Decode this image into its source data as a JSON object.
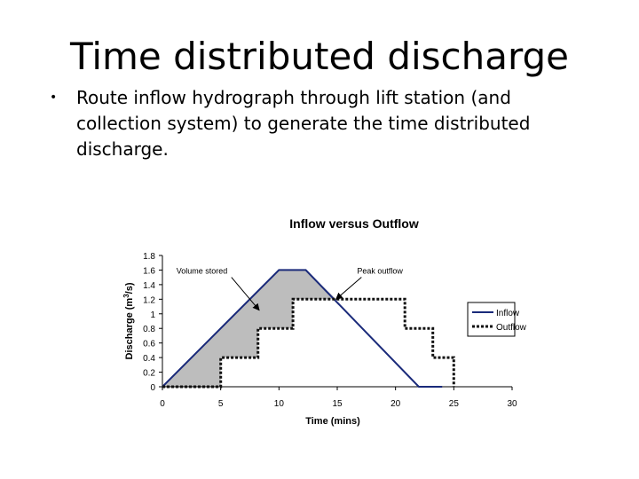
{
  "slide": {
    "title": "Time distributed discharge",
    "bullets": [
      "Route inflow hydrograph through lift station (and collection system) to generate the time distributed discharge."
    ]
  },
  "chart_data": {
    "type": "line",
    "title": "Inflow versus Outflow",
    "xlabel": "Time (mins)",
    "ylabel_parts": [
      "Discharge (m",
      "3",
      "/s)"
    ],
    "xlim": [
      0,
      30
    ],
    "ylim": [
      0,
      1.8
    ],
    "x_ticks": [
      0,
      5,
      10,
      15,
      20,
      25,
      30
    ],
    "y_ticks": [
      "0",
      "0.2",
      "0.4",
      "0.6",
      "0.8",
      "1",
      "1.2",
      "1.4",
      "1.6",
      "1.8"
    ],
    "grid": false,
    "legend_position": "right",
    "series": [
      {
        "name": "Inflow",
        "style": "solid",
        "color": "#1a2a7a",
        "x": [
          0,
          10,
          12.3,
          22,
          24
        ],
        "y": [
          0,
          1.6,
          1.6,
          0,
          0
        ]
      },
      {
        "name": "Outflow",
        "style": "dotted",
        "color": "#111111",
        "x": [
          0,
          5,
          5,
          8.2,
          8.2,
          11.2,
          11.2,
          14.9,
          14.9,
          20.8,
          20.8,
          23.2,
          23.2,
          25,
          25
        ],
        "y": [
          0,
          0,
          0.4,
          0.4,
          0.8,
          0.8,
          1.2,
          1.2,
          1.2,
          1.2,
          0.8,
          0.8,
          0.4,
          0.4,
          0
        ]
      }
    ],
    "annotations": [
      {
        "label": "Volume stored",
        "text_at": [
          1.2,
          1.55
        ],
        "arrow_to": [
          8.3,
          1.05
        ]
      },
      {
        "label": "Peak outflow",
        "text_at": [
          16.7,
          1.55
        ],
        "arrow_to": [
          14.9,
          1.2
        ]
      }
    ],
    "shading": {
      "label": "Volume stored",
      "color": "#bdbdbd"
    }
  }
}
